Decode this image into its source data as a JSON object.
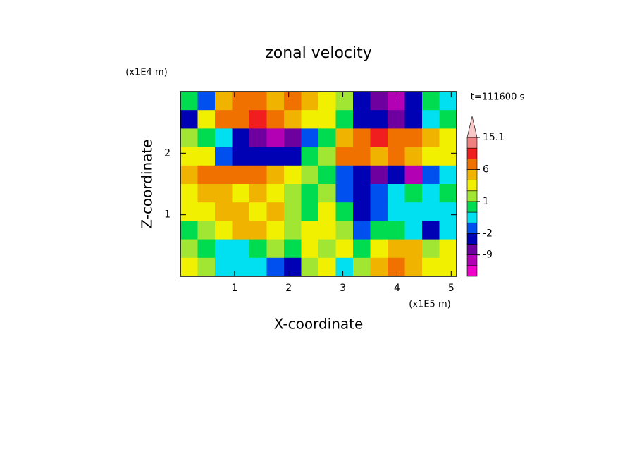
{
  "chart_data": {
    "type": "contour",
    "title": "zonal velocity",
    "x_label": "X-coordinate",
    "y_label": "Z-coordinate",
    "x_scale_label": "(x1E5 m)",
    "y_scale_label": "(x1E4 m)",
    "time_label": "t=111600 s",
    "xlim": [
      0,
      5.1
    ],
    "xticks": [
      1,
      2,
      3,
      4,
      5
    ],
    "ylim": [
      0,
      3
    ],
    "yticks": [
      1,
      2
    ],
    "levels": [
      -12,
      -9,
      -6,
      -2,
      -1,
      0,
      1,
      2,
      3,
      6,
      9,
      12,
      15.1
    ],
    "colors": [
      "#f000c8",
      "#b400b4",
      "#6e00a0",
      "#0000b4",
      "#0050f0",
      "#00e0f0",
      "#00dc50",
      "#a0e632",
      "#f0f000",
      "#f0b400",
      "#f07000",
      "#f01e1e",
      "#f08080",
      "#f8c8c8"
    ],
    "colorbar_ticks": [
      -9,
      -2,
      1,
      6,
      15.1
    ],
    "z": [
      [
        0.5,
        -1.5,
        4.5,
        7.5,
        7.5,
        4.5,
        7.5,
        4.5,
        2.5,
        1.5,
        -4,
        -7.5,
        -10.5,
        -4,
        0.5,
        -0.5
      ],
      [
        -4,
        2.5,
        7.5,
        7.5,
        10.5,
        7.5,
        4.5,
        2.5,
        2.5,
        0.5,
        -4,
        -4,
        -7.5,
        -4,
        -0.5,
        0.5
      ],
      [
        1.5,
        0.5,
        -0.5,
        -4,
        -7.5,
        -10.5,
        -7.5,
        -1.5,
        0.5,
        4.5,
        7.5,
        10.5,
        7.5,
        7.5,
        4.5,
        2.5
      ],
      [
        2.5,
        2.5,
        -1.5,
        -4,
        -4,
        -4,
        -4,
        0.5,
        1.5,
        7.5,
        7.5,
        4.5,
        7.5,
        4.5,
        2.5,
        2.5
      ],
      [
        4.5,
        7.5,
        7.5,
        7.5,
        7.5,
        4.5,
        2.5,
        1.5,
        0.5,
        -1.5,
        -4,
        -7.5,
        -4,
        -10.5,
        -1.5,
        -0.5
      ],
      [
        2.5,
        4.5,
        4.5,
        2.5,
        4.5,
        2.5,
        1.5,
        0.5,
        1.5,
        -1.5,
        -4,
        -1.5,
        -0.5,
        0.5,
        -0.5,
        0.5
      ],
      [
        2.5,
        2.5,
        4.5,
        4.5,
        2.5,
        4.5,
        1.5,
        0.5,
        2.5,
        0.5,
        -4,
        -1.5,
        -0.5,
        -0.5,
        -0.5,
        -0.5
      ],
      [
        0.5,
        1.5,
        2.5,
        4.5,
        4.5,
        2.5,
        1.5,
        2.5,
        2.5,
        1.5,
        -1.5,
        0.5,
        0.5,
        -0.5,
        -4,
        -0.5
      ],
      [
        1.5,
        0.5,
        -0.5,
        -0.5,
        0.5,
        1.5,
        0.5,
        2.5,
        1.5,
        2.5,
        0.5,
        2.5,
        4.5,
        4.5,
        1.5,
        2.5
      ],
      [
        2.5,
        1.5,
        -0.5,
        -0.5,
        -0.5,
        -1.5,
        -4,
        1.5,
        2.5,
        -0.5,
        1.5,
        4.5,
        7.5,
        4.5,
        2.5,
        2.5
      ]
    ]
  }
}
